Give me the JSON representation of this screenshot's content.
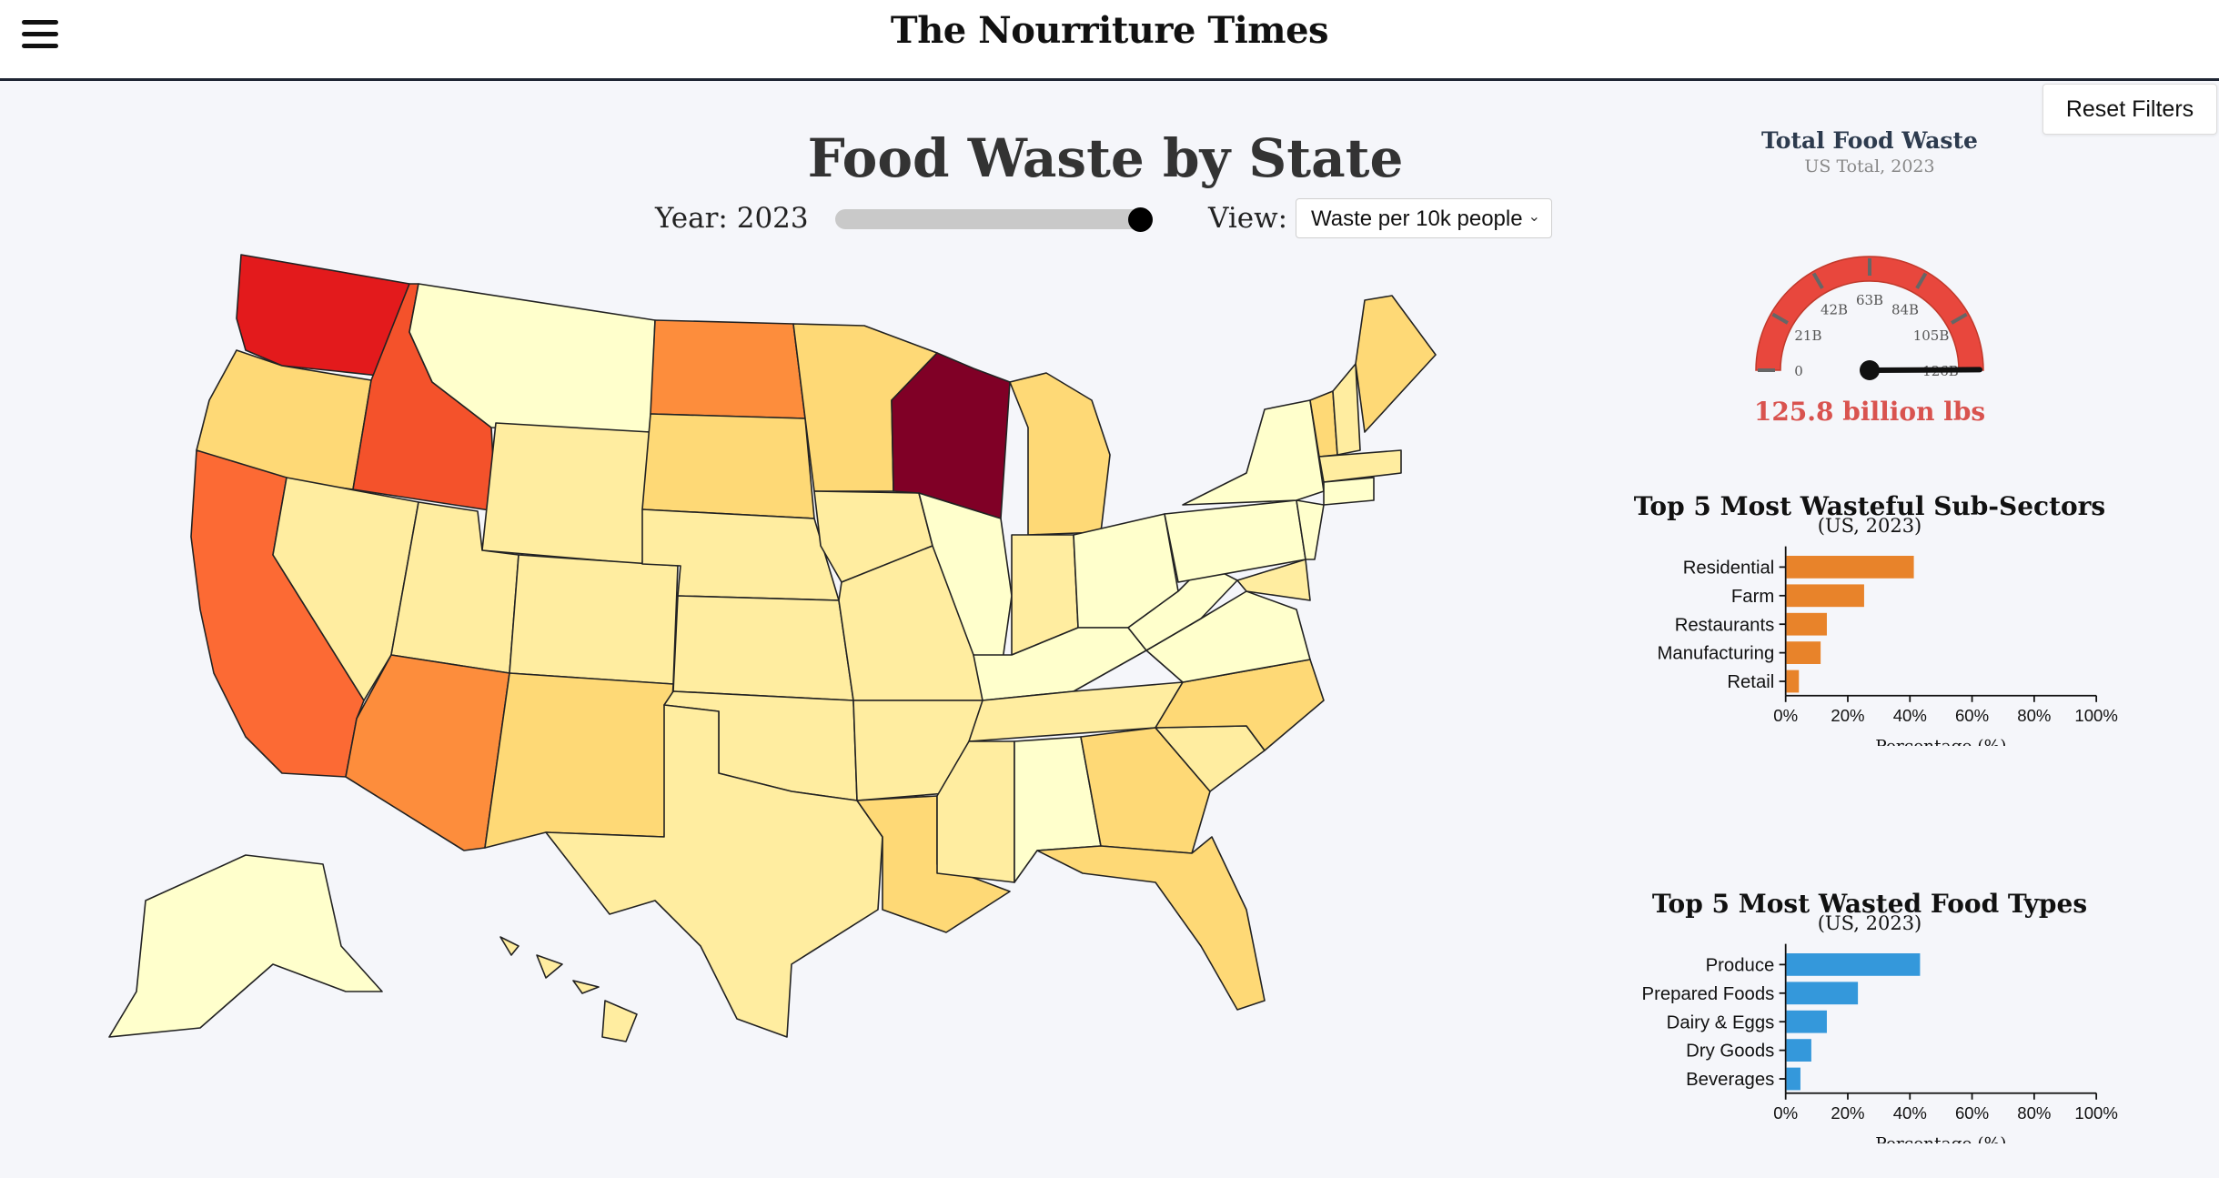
{
  "header": {
    "brand": "The Nourriture Times",
    "reset_label": "Reset Filters"
  },
  "controls": {
    "title": "Food Waste by State",
    "year_label": "Year: 2023",
    "year_slider_value": 1.0,
    "view_label": "View:",
    "view_selected": "Waste per 10k people"
  },
  "gauge": {
    "title": "Total Food Waste",
    "subtitle": "US Total, 2023",
    "value_label": "125.8 billion lbs",
    "value": 125.8,
    "min": 0,
    "max": 126,
    "ticks": [
      "0",
      "21B",
      "42B",
      "63B",
      "84B",
      "105B",
      "126B"
    ],
    "arc_color": "#e8473d"
  },
  "subsectors": {
    "title": "Top 5 Most Wasteful Sub-Sectors",
    "subtitle": "(US, 2023)",
    "xlabel": "Percentage (%)",
    "color": "#e8832a"
  },
  "foodtypes": {
    "title": "Top 5 Most Wasted Food Types",
    "subtitle": "(US, 2023)",
    "xlabel": "Percentage (%)",
    "color": "#3498db"
  },
  "chart_data": [
    {
      "type": "bar",
      "title": "Top 5 Most Wasteful Sub-Sectors",
      "categories": [
        "Residential",
        "Farm",
        "Restaurants",
        "Manufacturing",
        "Retail"
      ],
      "values": [
        41,
        25,
        13,
        11,
        4
      ],
      "xlim": [
        0,
        100
      ],
      "ticks": [
        "0%",
        "20%",
        "40%",
        "60%",
        "80%",
        "100%"
      ],
      "xlabel": "Percentage (%)"
    },
    {
      "type": "bar",
      "title": "Top 5 Most Wasted Food Types",
      "categories": [
        "Produce",
        "Prepared Foods",
        "Dairy & Eggs",
        "Dry Goods",
        "Beverages"
      ],
      "values": [
        43,
        23,
        13,
        8,
        4.5
      ],
      "xlim": [
        0,
        100
      ],
      "ticks": [
        "0%",
        "20%",
        "40%",
        "60%",
        "80%",
        "100%"
      ],
      "xlabel": "Percentage (%)"
    }
  ]
}
